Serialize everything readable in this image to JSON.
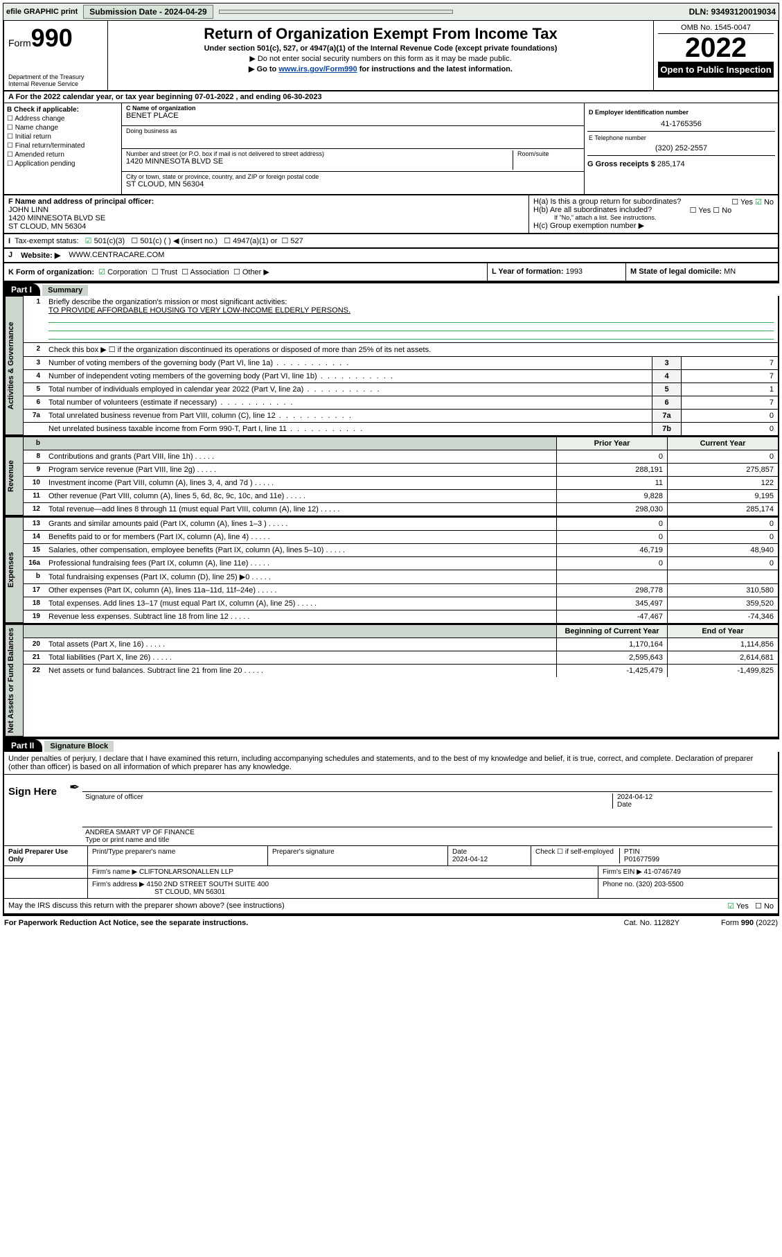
{
  "topbar": {
    "efile": "efile GRAPHIC print",
    "submission_label": "Submission Date - 2024-04-29",
    "dln": "DLN: 93493120019034"
  },
  "header": {
    "form_word": "Form",
    "form_num": "990",
    "dept": "Department of the Treasury",
    "irs": "Internal Revenue Service",
    "title": "Return of Organization Exempt From Income Tax",
    "sub": "Under section 501(c), 527, or 4947(a)(1) of the Internal Revenue Code (except private foundations)",
    "line1": "▶ Do not enter social security numbers on this form as it may be made public.",
    "line2_pre": "▶ Go to ",
    "line2_link": "www.irs.gov/Form990",
    "line2_post": " for instructions and the latest information.",
    "omb": "OMB No. 1545-0047",
    "year": "2022",
    "otp": "Open to Public Inspection"
  },
  "A": {
    "line": "A For the 2022 calendar year, or tax year beginning 07-01-2022   , and ending 06-30-2023"
  },
  "B": {
    "label": "B Check if applicable:",
    "items": [
      "Address change",
      "Name change",
      "Initial return",
      "Final return/terminated",
      "Amended return",
      "Application pending"
    ]
  },
  "C": {
    "name_lbl": "C Name of organization",
    "name": "BENET PLACE",
    "dba_lbl": "Doing business as",
    "addr_lbl": "Number and street (or P.O. box if mail is not delivered to street address)",
    "room_lbl": "Room/suite",
    "addr": "1420 MINNESOTA BLVD SE",
    "city_lbl": "City or town, state or province, country, and ZIP or foreign postal code",
    "city": "ST CLOUD, MN  56304"
  },
  "D": {
    "lbl": "D Employer identification number",
    "val": "41-1765356"
  },
  "E": {
    "lbl": "E Telephone number",
    "val": "(320) 252-2557"
  },
  "G": {
    "lbl": "G Gross receipts $",
    "val": "285,174"
  },
  "F": {
    "lbl": "F  Name and address of principal officer:",
    "name": "JOHN LINN",
    "addr1": "1420 MINNESOTA BLVD SE",
    "addr2": "ST CLOUD, MN  56304"
  },
  "H": {
    "a": "H(a)  Is this a group return for subordinates?",
    "a_yes": "Yes",
    "a_no": "No",
    "b": "H(b)  Are all subordinates included?",
    "b_yes": "Yes",
    "b_no": "No",
    "b_note": "If \"No,\" attach a list. See instructions.",
    "c": "H(c)  Group exemption number ▶"
  },
  "I": {
    "lbl": "Tax-exempt status:",
    "o1": "501(c)(3)",
    "o2": "501(c) (   ) ◀ (insert no.)",
    "o3": "4947(a)(1) or",
    "o4": "527"
  },
  "J": {
    "lbl": "Website: ▶",
    "val": "WWW.CENTRACARE.COM"
  },
  "K": {
    "lbl": "K Form of organization:",
    "o1": "Corporation",
    "o2": "Trust",
    "o3": "Association",
    "o4": "Other ▶"
  },
  "L": {
    "lbl": "L Year of formation:",
    "val": "1993"
  },
  "M": {
    "lbl": "M State of legal domicile:",
    "val": "MN"
  },
  "part1": {
    "tag": "Part I",
    "title": "Summary",
    "q1": "Briefly describe the organization's mission or most significant activities:",
    "mission": "TO PROVIDE AFFORDABLE HOUSING TO VERY LOW-INCOME ELDERLY PERSONS.",
    "q2": "Check this box ▶ ☐  if the organization discontinued its operations or disposed of more than 25% of its net assets."
  },
  "gov_rows": [
    {
      "n": "3",
      "t": "Number of voting members of the governing body (Part VI, line 1a)",
      "box": "3",
      "v": "7"
    },
    {
      "n": "4",
      "t": "Number of independent voting members of the governing body (Part VI, line 1b)",
      "box": "4",
      "v": "7"
    },
    {
      "n": "5",
      "t": "Total number of individuals employed in calendar year 2022 (Part V, line 2a)",
      "box": "5",
      "v": "1"
    },
    {
      "n": "6",
      "t": "Total number of volunteers (estimate if necessary)",
      "box": "6",
      "v": "7"
    },
    {
      "n": "7a",
      "t": "Total unrelated business revenue from Part VIII, column (C), line 12",
      "box": "7a",
      "v": "0"
    },
    {
      "n": "",
      "t": "Net unrelated business taxable income from Form 990-T, Part I, line 11",
      "box": "7b",
      "v": "0"
    }
  ],
  "two_col_hdr": {
    "b": "b",
    "py": "Prior Year",
    "cy": "Current Year"
  },
  "rev_rows": [
    {
      "n": "8",
      "t": "Contributions and grants (Part VIII, line 1h)",
      "py": "0",
      "cy": "0"
    },
    {
      "n": "9",
      "t": "Program service revenue (Part VIII, line 2g)",
      "py": "288,191",
      "cy": "275,857"
    },
    {
      "n": "10",
      "t": "Investment income (Part VIII, column (A), lines 3, 4, and 7d )",
      "py": "11",
      "cy": "122"
    },
    {
      "n": "11",
      "t": "Other revenue (Part VIII, column (A), lines 5, 6d, 8c, 9c, 10c, and 11e)",
      "py": "9,828",
      "cy": "9,195"
    },
    {
      "n": "12",
      "t": "Total revenue—add lines 8 through 11 (must equal Part VIII, column (A), line 12)",
      "py": "298,030",
      "cy": "285,174"
    }
  ],
  "exp_rows": [
    {
      "n": "13",
      "t": "Grants and similar amounts paid (Part IX, column (A), lines 1–3 )",
      "py": "0",
      "cy": "0"
    },
    {
      "n": "14",
      "t": "Benefits paid to or for members (Part IX, column (A), line 4)",
      "py": "0",
      "cy": "0"
    },
    {
      "n": "15",
      "t": "Salaries, other compensation, employee benefits (Part IX, column (A), lines 5–10)",
      "py": "46,719",
      "cy": "48,940"
    },
    {
      "n": "16a",
      "t": "Professional fundraising fees (Part IX, column (A), line 11e)",
      "py": "0",
      "cy": "0"
    },
    {
      "n": "b",
      "t": "Total fundraising expenses (Part IX, column (D), line 25) ▶0",
      "py": "",
      "cy": ""
    },
    {
      "n": "17",
      "t": "Other expenses (Part IX, column (A), lines 11a–11d, 11f–24e)",
      "py": "298,778",
      "cy": "310,580"
    },
    {
      "n": "18",
      "t": "Total expenses. Add lines 13–17 (must equal Part IX, column (A), line 25)",
      "py": "345,497",
      "cy": "359,520"
    },
    {
      "n": "19",
      "t": "Revenue less expenses. Subtract line 18 from line 12",
      "py": "-47,467",
      "cy": "-74,346"
    }
  ],
  "na_hdr": {
    "py": "Beginning of Current Year",
    "cy": "End of Year"
  },
  "na_rows": [
    {
      "n": "20",
      "t": "Total assets (Part X, line 16)",
      "py": "1,170,164",
      "cy": "1,114,856"
    },
    {
      "n": "21",
      "t": "Total liabilities (Part X, line 26)",
      "py": "2,595,643",
      "cy": "2,614,681"
    },
    {
      "n": "22",
      "t": "Net assets or fund balances. Subtract line 21 from line 20",
      "py": "-1,425,479",
      "cy": "-1,499,825"
    }
  ],
  "part2": {
    "tag": "Part II",
    "title": "Signature Block",
    "decl": "Under penalties of perjury, I declare that I have examined this return, including accompanying schedules and statements, and to the best of my knowledge and belief, it is true, correct, and complete. Declaration of preparer (other than officer) is based on all information of which preparer has any knowledge."
  },
  "sign": {
    "here": "Sign Here",
    "sig_officer": "Signature of officer",
    "date_lbl": "Date",
    "date": "2024-04-12",
    "name": "ANDREA SMART VP OF FINANCE",
    "name_lbl": "Type or print name and title"
  },
  "paid": {
    "title": "Paid Preparer Use Only",
    "c1": "Print/Type preparer's name",
    "c2": "Preparer's signature",
    "c3": "Date",
    "c3v": "2024-04-12",
    "c4": "Check ☐ if self-employed",
    "c5": "PTIN",
    "c5v": "P01677599",
    "firm_lbl": "Firm's name    ▶",
    "firm": "CLIFTONLARSONALLEN LLP",
    "ein_lbl": "Firm's EIN ▶",
    "ein": "41-0746749",
    "addr_lbl": "Firm's address ▶",
    "addr1": "4150 2ND STREET SOUTH SUITE 400",
    "addr2": "ST CLOUD, MN  56301",
    "phone_lbl": "Phone no.",
    "phone": "(320) 203-5500",
    "discuss": "May the IRS discuss this return with the preparer shown above? (see instructions)",
    "dyes": "Yes",
    "dno": "No"
  },
  "footer": {
    "l": "For Paperwork Reduction Act Notice, see the separate instructions.",
    "m": "Cat. No. 11282Y",
    "r": "Form 990 (2022)"
  },
  "vtabs": {
    "gov": "Activities & Governance",
    "rev": "Revenue",
    "exp": "Expenses",
    "na": "Net Assets or Fund Balances"
  }
}
